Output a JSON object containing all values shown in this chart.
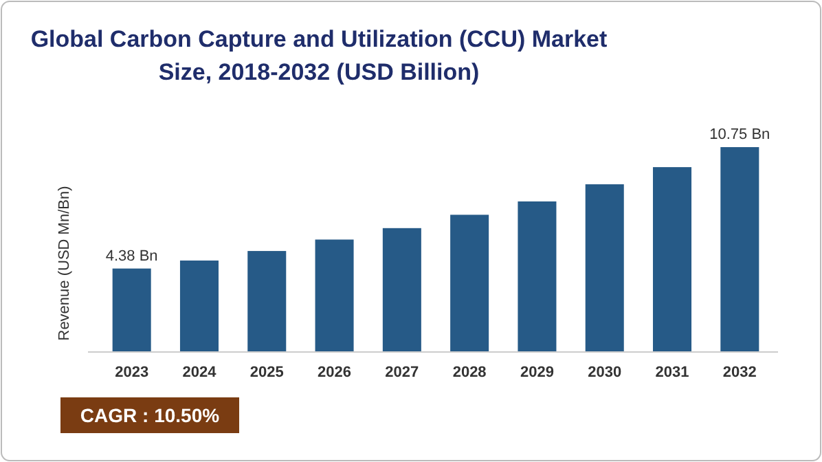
{
  "chart_data": {
    "type": "bar",
    "title": "Global Carbon Capture and Utilization (CCU) Market Size, 2018-2032 (USD Billion)",
    "ylabel": "Revenue (USD Mn/Bn)",
    "categories": [
      "2023",
      "2024",
      "2025",
      "2026",
      "2027",
      "2028",
      "2029",
      "2030",
      "2031",
      "2032"
    ],
    "values": [
      4.38,
      4.8,
      5.3,
      5.9,
      6.5,
      7.2,
      7.9,
      8.8,
      9.7,
      10.75
    ],
    "value_labels": [
      "4.38 Bn",
      null,
      null,
      null,
      null,
      null,
      null,
      null,
      null,
      "10.75 Bn"
    ],
    "color": "#265a87",
    "annotations": [
      "CAGR : 10.50%"
    ]
  }
}
